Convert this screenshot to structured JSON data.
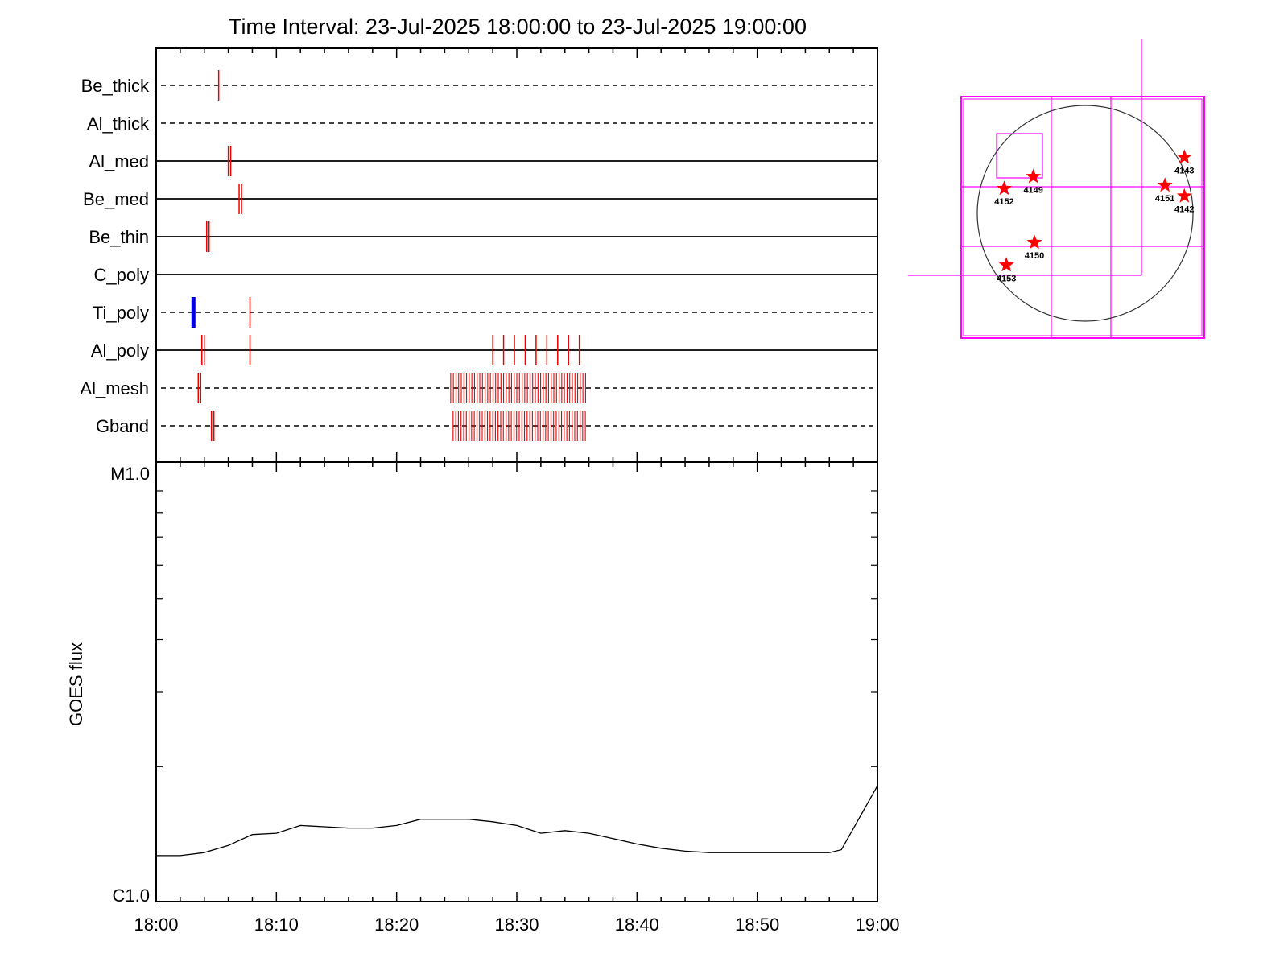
{
  "title": "Time Interval: 23-Jul-2025 18:00:00 to 23-Jul-2025 19:00:00",
  "chart_data": [
    {
      "type": "scatter",
      "x_range": [
        "18:00",
        "19:00"
      ],
      "rows": [
        {
          "name": "Be_thick",
          "line": "dashed",
          "events": [
            {
              "t": 5.2,
              "n": 1
            }
          ]
        },
        {
          "name": "Al_thick",
          "line": "dashed",
          "events": []
        },
        {
          "name": "Al_med",
          "line": "solid",
          "events": [
            {
              "t": 6.0,
              "n": 2
            }
          ]
        },
        {
          "name": "Be_med",
          "line": "solid",
          "events": [
            {
              "t": 6.9,
              "n": 2
            }
          ]
        },
        {
          "name": "Be_thin",
          "line": "solid",
          "events": [
            {
              "t": 4.2,
              "n": 2
            }
          ]
        },
        {
          "name": "C_poly",
          "line": "solid",
          "events": []
        },
        {
          "name": "Ti_poly",
          "line": "dashed",
          "events": [
            {
              "t": 3.1,
              "n": 1,
              "color": "#0000dd",
              "thick": true
            },
            {
              "t": 7.8,
              "n": 1
            }
          ]
        },
        {
          "name": "Al_poly",
          "line": "solid",
          "events": [
            {
              "t": 3.8,
              "n": 2
            },
            {
              "t": 7.8,
              "n": 1
            },
            {
              "t": 28.0,
              "n": 1
            },
            {
              "t": 28.9,
              "n": 1
            },
            {
              "t": 29.8,
              "n": 1
            },
            {
              "t": 30.7,
              "n": 1
            },
            {
              "t": 31.6,
              "n": 1
            },
            {
              "t": 32.5,
              "n": 1
            },
            {
              "t": 33.4,
              "n": 1
            },
            {
              "t": 34.3,
              "n": 1
            },
            {
              "t": 35.2,
              "n": 1
            }
          ]
        },
        {
          "name": "Al_mesh",
          "line": "dashed",
          "events": [
            {
              "t": 3.5,
              "n": 2
            },
            {
              "span": [
                24.5,
                35.8
              ],
              "step": 0.22
            }
          ]
        },
        {
          "name": "Gband",
          "line": "dashed",
          "events": [
            {
              "t": 4.6,
              "n": 2
            },
            {
              "span": [
                24.7,
                35.9
              ],
              "step": 0.22
            }
          ]
        }
      ],
      "event_color": "#ee0000"
    },
    {
      "type": "line",
      "ylabel": "GOES flux",
      "y_ticks": [
        "M1.0",
        "C1.0"
      ],
      "y_scale": "log",
      "ylim": [
        1e-06,
        1e-05
      ],
      "x_ticks": [
        "18:00",
        "18:10",
        "18:20",
        "18:30",
        "18:40",
        "18:50",
        "19:00"
      ],
      "x_minutes": [
        0,
        2,
        4,
        6,
        8,
        10,
        12,
        14,
        16,
        18,
        20,
        22,
        24,
        26,
        28,
        30,
        32,
        34,
        36,
        38,
        40,
        42,
        44,
        46,
        48,
        50,
        52,
        54,
        56,
        57,
        60
      ],
      "y": [
        1.23e-06,
        1.23e-06,
        1.25e-06,
        1.3e-06,
        1.38e-06,
        1.39e-06,
        1.45e-06,
        1.44e-06,
        1.43e-06,
        1.43e-06,
        1.45e-06,
        1.5e-06,
        1.5e-06,
        1.5e-06,
        1.48e-06,
        1.45e-06,
        1.39e-06,
        1.41e-06,
        1.39e-06,
        1.35e-06,
        1.31e-06,
        1.28e-06,
        1.26e-06,
        1.25e-06,
        1.25e-06,
        1.25e-06,
        1.25e-06,
        1.25e-06,
        1.25e-06,
        1.27e-06,
        1.8e-06
      ],
      "line_color": "#000000"
    },
    {
      "type": "scatter",
      "grid_color": "#ff00ff",
      "star_color": "#ff0000",
      "active_regions": [
        {
          "label": "4143",
          "x": 0.92,
          "y": 0.52
        },
        {
          "label": "4149",
          "x": -0.48,
          "y": 0.34
        },
        {
          "label": "4152",
          "x": -0.75,
          "y": 0.23
        },
        {
          "label": "4151",
          "x": 0.74,
          "y": 0.26
        },
        {
          "label": "4142",
          "x": 0.92,
          "y": 0.16
        },
        {
          "label": "4150",
          "x": -0.47,
          "y": -0.27
        },
        {
          "label": "4153",
          "x": -0.73,
          "y": -0.48
        }
      ]
    }
  ]
}
